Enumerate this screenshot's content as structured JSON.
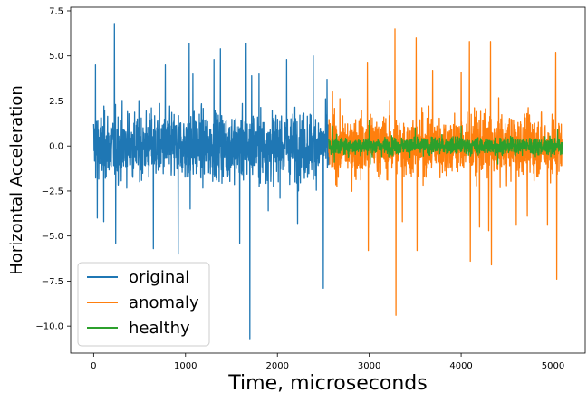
{
  "chart_data": {
    "type": "line",
    "xlabel": "Time, microseconds",
    "ylabel": "Horizontal Acceleration",
    "xlim": [
      -250,
      5350
    ],
    "ylim": [
      -11.5,
      7.7
    ],
    "x_ticks": [
      0,
      1000,
      2000,
      3000,
      4000,
      5000
    ],
    "y_ticks": [
      -10.0,
      -7.5,
      -5.0,
      -2.5,
      0.0,
      2.5,
      5.0,
      7.5
    ],
    "x_tick_labels": [
      "0",
      "1000",
      "2000",
      "3000",
      "4000",
      "5000"
    ],
    "y_tick_labels": [
      "−10.0",
      "−7.5",
      "−5.0",
      "−2.5",
      "0.0",
      "2.5",
      "5.0",
      "7.5"
    ],
    "grid": false,
    "legend_position": "lower-left",
    "series": [
      {
        "name": "original",
        "color": "#1f77b4",
        "x_range": [
          0,
          2560
        ],
        "typical_amplitude": 2.2,
        "spikes": [
          [
            20,
            4.5
          ],
          [
            40,
            -4.0
          ],
          [
            110,
            -4.2
          ],
          [
            225,
            6.8
          ],
          [
            240,
            -5.4
          ],
          [
            650,
            -5.7
          ],
          [
            780,
            4.5
          ],
          [
            920,
            -6.0
          ],
          [
            1040,
            5.7
          ],
          [
            1050,
            -3.5
          ],
          [
            1080,
            4.0
          ],
          [
            1310,
            4.8
          ],
          [
            1380,
            5.4
          ],
          [
            1590,
            -5.4
          ],
          [
            1660,
            5.7
          ],
          [
            1700,
            -10.7
          ],
          [
            1720,
            3.9
          ],
          [
            1800,
            4.0
          ],
          [
            1900,
            -3.6
          ],
          [
            2100,
            4.8
          ],
          [
            2220,
            -4.3
          ],
          [
            2390,
            5.0
          ],
          [
            2500,
            -7.9
          ],
          [
            2540,
            3.7
          ]
        ]
      },
      {
        "name": "anomaly",
        "color": "#ff7f0e",
        "x_range": [
          2560,
          5100
        ],
        "typical_amplitude": 2.0,
        "spikes": [
          [
            2600,
            3.0
          ],
          [
            2980,
            4.6
          ],
          [
            2990,
            -5.8
          ],
          [
            3280,
            6.5
          ],
          [
            3290,
            -9.4
          ],
          [
            3360,
            -4.2
          ],
          [
            3510,
            6.0
          ],
          [
            3520,
            -5.8
          ],
          [
            3690,
            4.2
          ],
          [
            4000,
            4.1
          ],
          [
            4090,
            5.8
          ],
          [
            4100,
            -6.4
          ],
          [
            4200,
            -4.5
          ],
          [
            4300,
            -4.7
          ],
          [
            4320,
            5.8
          ],
          [
            4330,
            -6.6
          ],
          [
            4600,
            -4.4
          ],
          [
            4720,
            -3.9
          ],
          [
            4940,
            -4.4
          ],
          [
            5030,
            5.2
          ],
          [
            5040,
            -7.4
          ],
          [
            5110,
            3.2
          ]
        ]
      },
      {
        "name": "healthy",
        "color": "#2ca02c",
        "x_range": [
          2560,
          5100
        ],
        "typical_amplitude": 0.55,
        "spikes": [
          [
            2600,
            1.1
          ],
          [
            2620,
            -0.9
          ],
          [
            3000,
            1.4
          ],
          [
            3010,
            -1.0
          ],
          [
            3500,
            1.0
          ],
          [
            4000,
            1.1
          ],
          [
            4400,
            -1.0
          ],
          [
            5050,
            0.9
          ]
        ]
      }
    ]
  }
}
